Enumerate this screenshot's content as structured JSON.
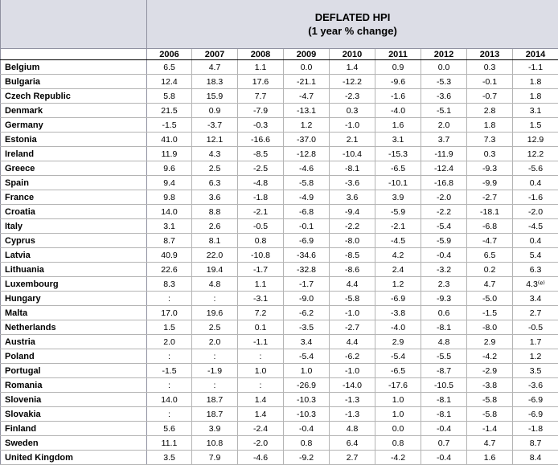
{
  "header": {
    "title_line1": "DEFLATED HPI",
    "title_line2": "(1 year % change)"
  },
  "years": [
    "2006",
    "2007",
    "2008",
    "2009",
    "2010",
    "2011",
    "2012",
    "2013",
    "2014"
  ],
  "rows": [
    {
      "country": "Belgium",
      "values": [
        "6.5",
        "4.7",
        "1.1",
        "0.0",
        "1.4",
        "0.9",
        "0.0",
        "0.3",
        "-1.1"
      ]
    },
    {
      "country": "Bulgaria",
      "values": [
        "12.4",
        "18.3",
        "17.6",
        "-21.1",
        "-12.2",
        "-9.6",
        "-5.3",
        "-0.1",
        "1.8"
      ]
    },
    {
      "country": "Czech Republic",
      "values": [
        "5.8",
        "15.9",
        "7.7",
        "-4.7",
        "-2.3",
        "-1.6",
        "-3.6",
        "-0.7",
        "1.8"
      ]
    },
    {
      "country": "Denmark",
      "values": [
        "21.5",
        "0.9",
        "-7.9",
        "-13.1",
        "0.3",
        "-4.0",
        "-5.1",
        "2.8",
        "3.1"
      ]
    },
    {
      "country": "Germany",
      "values": [
        "-1.5",
        "-3.7",
        "-0.3",
        "1.2",
        "-1.0",
        "1.6",
        "2.0",
        "1.8",
        "1.5"
      ]
    },
    {
      "country": "Estonia",
      "values": [
        "41.0",
        "12.1",
        "-16.6",
        "-37.0",
        "2.1",
        "3.1",
        "3.7",
        "7.3",
        "12.9"
      ]
    },
    {
      "country": "Ireland",
      "values": [
        "11.9",
        "4.3",
        "-8.5",
        "-12.8",
        "-10.4",
        "-15.3",
        "-11.9",
        "0.3",
        "12.2"
      ]
    },
    {
      "country": "Greece",
      "values": [
        "9.6",
        "2.5",
        "-2.5",
        "-4.6",
        "-8.1",
        "-6.5",
        "-12.4",
        "-9.3",
        "-5.6"
      ]
    },
    {
      "country": "Spain",
      "values": [
        "9.4",
        "6.3",
        "-4.8",
        "-5.8",
        "-3.6",
        "-10.1",
        "-16.8",
        "-9.9",
        "0.4"
      ]
    },
    {
      "country": "France",
      "values": [
        "9.8",
        "3.6",
        "-1.8",
        "-4.9",
        "3.6",
        "3.9",
        "-2.0",
        "-2.7",
        "-1.6"
      ]
    },
    {
      "country": "Croatia",
      "values": [
        "14.0",
        "8.8",
        "-2.1",
        "-6.8",
        "-9.4",
        "-5.9",
        "-2.2",
        "-18.1",
        "-2.0"
      ]
    },
    {
      "country": "Italy",
      "values": [
        "3.1",
        "2.6",
        "-0.5",
        "-0.1",
        "-2.2",
        "-2.1",
        "-5.4",
        "-6.8",
        "-4.5"
      ]
    },
    {
      "country": "Cyprus",
      "values": [
        "8.7",
        "8.1",
        "0.8",
        "-6.9",
        "-8.0",
        "-4.5",
        "-5.9",
        "-4.7",
        "0.4"
      ]
    },
    {
      "country": "Latvia",
      "values": [
        "40.9",
        "22.0",
        "-10.8",
        "-34.6",
        "-8.5",
        "4.2",
        "-0.4",
        "6.5",
        "5.4"
      ]
    },
    {
      "country": "Lithuania",
      "values": [
        "22.6",
        "19.4",
        "-1.7",
        "-32.8",
        "-8.6",
        "2.4",
        "-3.2",
        "0.2",
        "6.3"
      ]
    },
    {
      "country": "Luxembourg",
      "values": [
        "8.3",
        "4.8",
        "1.1",
        "-1.7",
        "4.4",
        "1.2",
        "2.3",
        "4.7",
        "4.3⁽ᵉ⁾"
      ]
    },
    {
      "country": "Hungary",
      "values": [
        ":",
        ":",
        "-3.1",
        "-9.0",
        "-5.8",
        "-6.9",
        "-9.3",
        "-5.0",
        "3.4"
      ]
    },
    {
      "country": "Malta",
      "values": [
        "17.0",
        "19.6",
        "7.2",
        "-6.2",
        "-1.0",
        "-3.8",
        "0.6",
        "-1.5",
        "2.7"
      ]
    },
    {
      "country": "Netherlands",
      "values": [
        "1.5",
        "2.5",
        "0.1",
        "-3.5",
        "-2.7",
        "-4.0",
        "-8.1",
        "-8.0",
        "-0.5"
      ]
    },
    {
      "country": "Austria",
      "values": [
        "2.0",
        "2.0",
        "-1.1",
        "3.4",
        "4.4",
        "2.9",
        "4.8",
        "2.9",
        "1.7"
      ]
    },
    {
      "country": "Poland",
      "values": [
        ":",
        ":",
        ":",
        "-5.4",
        "-6.2",
        "-5.4",
        "-5.5",
        "-4.2",
        "1.2"
      ]
    },
    {
      "country": "Portugal",
      "values": [
        "-1.5",
        "-1.9",
        "1.0",
        "1.0",
        "-1.0",
        "-6.5",
        "-8.7",
        "-2.9",
        "3.5"
      ]
    },
    {
      "country": "Romania",
      "values": [
        ":",
        ":",
        ":",
        "-26.9",
        "-14.0",
        "-17.6",
        "-10.5",
        "-3.8",
        "-3.6"
      ]
    },
    {
      "country": "Slovenia",
      "values": [
        "14.0",
        "18.7",
        "1.4",
        "-10.3",
        "-1.3",
        "1.0",
        "-8.1",
        "-5.8",
        "-6.9"
      ]
    },
    {
      "country": "Slovakia",
      "values": [
        ":",
        "18.7",
        "1.4",
        "-10.3",
        "-1.3",
        "1.0",
        "-8.1",
        "-5.8",
        "-6.9"
      ]
    },
    {
      "country": "Finland",
      "values": [
        "5.6",
        "3.9",
        "-2.4",
        "-0.4",
        "4.8",
        "0.0",
        "-0.4",
        "-1.4",
        "-1.8"
      ]
    },
    {
      "country": "Sweden",
      "values": [
        "11.1",
        "10.8",
        "-2.0",
        "0.8",
        "6.4",
        "0.8",
        "0.7",
        "4.7",
        "8.7"
      ]
    },
    {
      "country": "United Kingdom",
      "values": [
        "3.5",
        "7.9",
        "-4.6",
        "-9.2",
        "2.7",
        "-4.2",
        "-0.4",
        "1.6",
        "8.4"
      ]
    }
  ]
}
